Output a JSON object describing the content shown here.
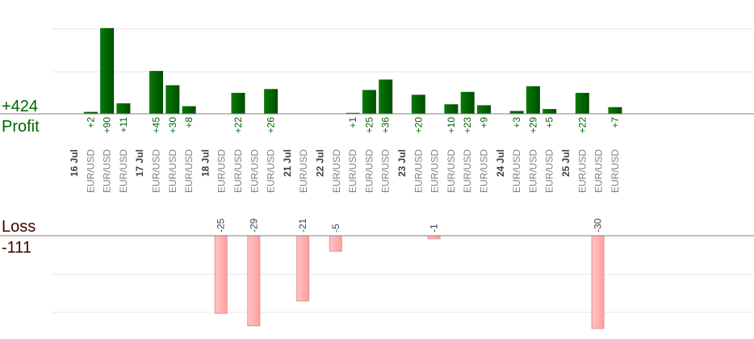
{
  "chart_data": {
    "type": "bar",
    "profit_title": "Profit",
    "profit_total": "+424",
    "loss_title": "Loss",
    "loss_total": "-111",
    "days": [
      "16 Jul",
      "17 Jul",
      "18 Jul",
      "21 Jul",
      "22 Jul",
      "23 Jul",
      "24 Jul",
      "25 Jul"
    ],
    "trades": [
      {
        "day": 0,
        "symbol": "EUR/USD",
        "value": 2,
        "label": "+2"
      },
      {
        "day": 0,
        "symbol": "EUR/USD",
        "value": 90,
        "label": "+90"
      },
      {
        "day": 0,
        "symbol": "EUR/USD",
        "value": 11,
        "label": "+11"
      },
      {
        "day": 1,
        "symbol": "EUR/USD",
        "value": 45,
        "label": "+45"
      },
      {
        "day": 1,
        "symbol": "EUR/USD",
        "value": 30,
        "label": "+30"
      },
      {
        "day": 1,
        "symbol": "EUR/USD",
        "value": 8,
        "label": "+8"
      },
      {
        "day": 2,
        "symbol": "EUR/USD",
        "value": -25,
        "label": "-25"
      },
      {
        "day": 2,
        "symbol": "EUR/USD",
        "value": 22,
        "label": "+22"
      },
      {
        "day": 2,
        "symbol": "EUR/USD",
        "value": -29,
        "label": "-29"
      },
      {
        "day": 2,
        "symbol": "EUR/USD",
        "value": 26,
        "label": "+26"
      },
      {
        "day": 3,
        "symbol": "EUR/USD",
        "value": -21,
        "label": "-21"
      },
      {
        "day": 4,
        "symbol": "EUR/USD",
        "value": -5,
        "label": "-5"
      },
      {
        "day": 4,
        "symbol": "EUR/USD",
        "value": 1,
        "label": "+1"
      },
      {
        "day": 4,
        "symbol": "EUR/USD",
        "value": 25,
        "label": "+25"
      },
      {
        "day": 4,
        "symbol": "EUR/USD",
        "value": 36,
        "label": "+36"
      },
      {
        "day": 5,
        "symbol": "EUR/USD",
        "value": 20,
        "label": "+20"
      },
      {
        "day": 5,
        "symbol": "EUR/USD",
        "value": -1,
        "label": "-1"
      },
      {
        "day": 5,
        "symbol": "EUR/USD",
        "value": 10,
        "label": "+10"
      },
      {
        "day": 5,
        "symbol": "EUR/USD",
        "value": 23,
        "label": "+23"
      },
      {
        "day": 5,
        "symbol": "EUR/USD",
        "value": 9,
        "label": "+9"
      },
      {
        "day": 6,
        "symbol": "EUR/USD",
        "value": 3,
        "label": "+3"
      },
      {
        "day": 6,
        "symbol": "EUR/USD",
        "value": 29,
        "label": "+29"
      },
      {
        "day": 6,
        "symbol": "EUR/USD",
        "value": 5,
        "label": "+5"
      },
      {
        "day": 7,
        "symbol": "EUR/USD",
        "value": 22,
        "label": "+22"
      },
      {
        "day": 7,
        "symbol": "EUR/USD",
        "value": -30,
        "label": "-30"
      },
      {
        "day": 7,
        "symbol": "EUR/USD",
        "value": 7,
        "label": "+7"
      }
    ],
    "colors": {
      "profit_bar": "#006400",
      "profit_bar_light": "#1f8a1f",
      "loss_bar": "#ffb6b6",
      "loss_bar_edge": "#e88e8e",
      "grid": "#e6e6e6",
      "axis": "#808080",
      "profit_text": "#006400",
      "loss_text": "#400000"
    },
    "grid": true
  }
}
